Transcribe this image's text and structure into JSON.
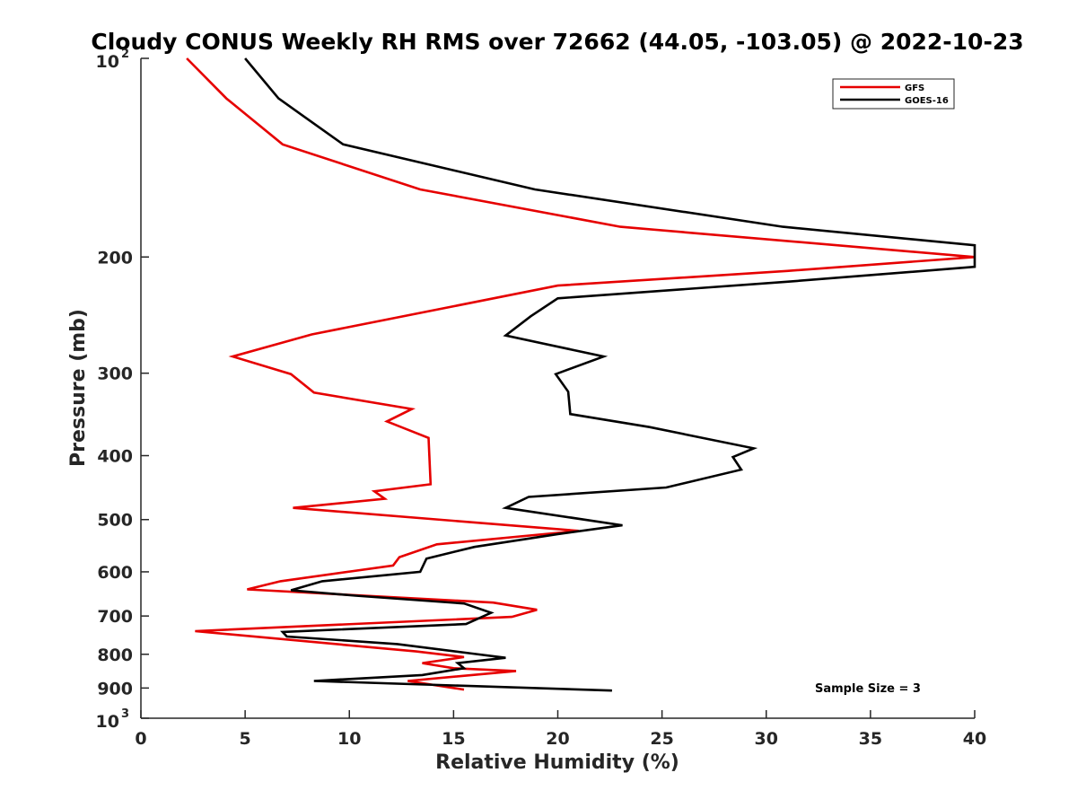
{
  "chart_data": {
    "type": "line",
    "title": "Cloudy CONUS Weekly RH RMS over 72662 (44.05, -103.05) @ 2022-10-23",
    "xlabel": "Relative Humidity (%)",
    "ylabel": "Pressure (mb)",
    "xlim": [
      0,
      40
    ],
    "ylim": [
      100,
      1000
    ],
    "y_scale": "log",
    "y_reversed": true,
    "grid": false,
    "legend_position": "top-right",
    "x_ticks": [
      "0",
      "5",
      "10",
      "15",
      "20",
      "25",
      "30",
      "35",
      "40"
    ],
    "y_ticks": [
      {
        "value": 100,
        "base": "10",
        "exp": "2"
      },
      {
        "value": 200,
        "label": "200"
      },
      {
        "value": 300,
        "label": "300"
      },
      {
        "value": 400,
        "label": "400"
      },
      {
        "value": 500,
        "label": "500"
      },
      {
        "value": 600,
        "label": "600"
      },
      {
        "value": 700,
        "label": "700"
      },
      {
        "value": 800,
        "label": "800"
      },
      {
        "value": 900,
        "label": "900"
      },
      {
        "value": 1000,
        "base": "10",
        "exp": "3"
      }
    ],
    "annotation": "Sample Size = 3",
    "series": [
      {
        "name": "GFS",
        "color": "#e60000",
        "points": [
          [
            2.2,
            100
          ],
          [
            4.1,
            115
          ],
          [
            6.8,
            135
          ],
          [
            13.4,
            158
          ],
          [
            23.0,
            180
          ],
          [
            40.0,
            200
          ],
          [
            31.0,
            210
          ],
          [
            20.0,
            221
          ],
          [
            8.2,
            262
          ],
          [
            4.4,
            283
          ],
          [
            7.2,
            301
          ],
          [
            8.3,
            321
          ],
          [
            13.0,
            340
          ],
          [
            11.8,
            355
          ],
          [
            13.8,
            376
          ],
          [
            13.9,
            442
          ],
          [
            11.2,
            453
          ],
          [
            11.7,
            465
          ],
          [
            7.3,
            480
          ],
          [
            21.0,
            520
          ],
          [
            14.2,
            545
          ],
          [
            12.4,
            570
          ],
          [
            12.1,
            587
          ],
          [
            6.7,
            620
          ],
          [
            5.1,
            638
          ],
          [
            16.9,
            668
          ],
          [
            19.0,
            685
          ],
          [
            17.8,
            702
          ],
          [
            2.6,
            738
          ],
          [
            13.2,
            792
          ],
          [
            15.5,
            808
          ],
          [
            13.5,
            825
          ],
          [
            15.0,
            840
          ],
          [
            18.0,
            848
          ],
          [
            12.8,
            878
          ],
          [
            15.5,
            905
          ]
        ]
      },
      {
        "name": "GOES-16",
        "color": "#000000",
        "points": [
          [
            5.0,
            100
          ],
          [
            6.6,
            115
          ],
          [
            9.7,
            135
          ],
          [
            18.9,
            158
          ],
          [
            30.8,
            180
          ],
          [
            40.0,
            192
          ],
          [
            40.0,
            207
          ],
          [
            31.0,
            218
          ],
          [
            20.0,
            231
          ],
          [
            18.7,
            246
          ],
          [
            17.5,
            263
          ],
          [
            22.2,
            283
          ],
          [
            19.9,
            301
          ],
          [
            20.5,
            320
          ],
          [
            20.6,
            346
          ],
          [
            24.4,
            362
          ],
          [
            29.4,
            390
          ],
          [
            28.4,
            402
          ],
          [
            28.8,
            420
          ],
          [
            25.2,
            447
          ],
          [
            18.6,
            462
          ],
          [
            17.5,
            480
          ],
          [
            23.1,
            510
          ],
          [
            20.0,
            526
          ],
          [
            16.0,
            550
          ],
          [
            13.7,
            573
          ],
          [
            13.4,
            600
          ],
          [
            8.7,
            620
          ],
          [
            7.2,
            640
          ],
          [
            10.3,
            652
          ],
          [
            15.5,
            670
          ],
          [
            16.8,
            692
          ],
          [
            15.6,
            720
          ],
          [
            6.8,
            740
          ],
          [
            7.0,
            752
          ],
          [
            12.3,
            772
          ],
          [
            15.9,
            798
          ],
          [
            17.5,
            810
          ],
          [
            15.2,
            825
          ],
          [
            15.5,
            840
          ],
          [
            13.5,
            860
          ],
          [
            8.3,
            878
          ],
          [
            22.6,
            908
          ]
        ]
      }
    ]
  }
}
